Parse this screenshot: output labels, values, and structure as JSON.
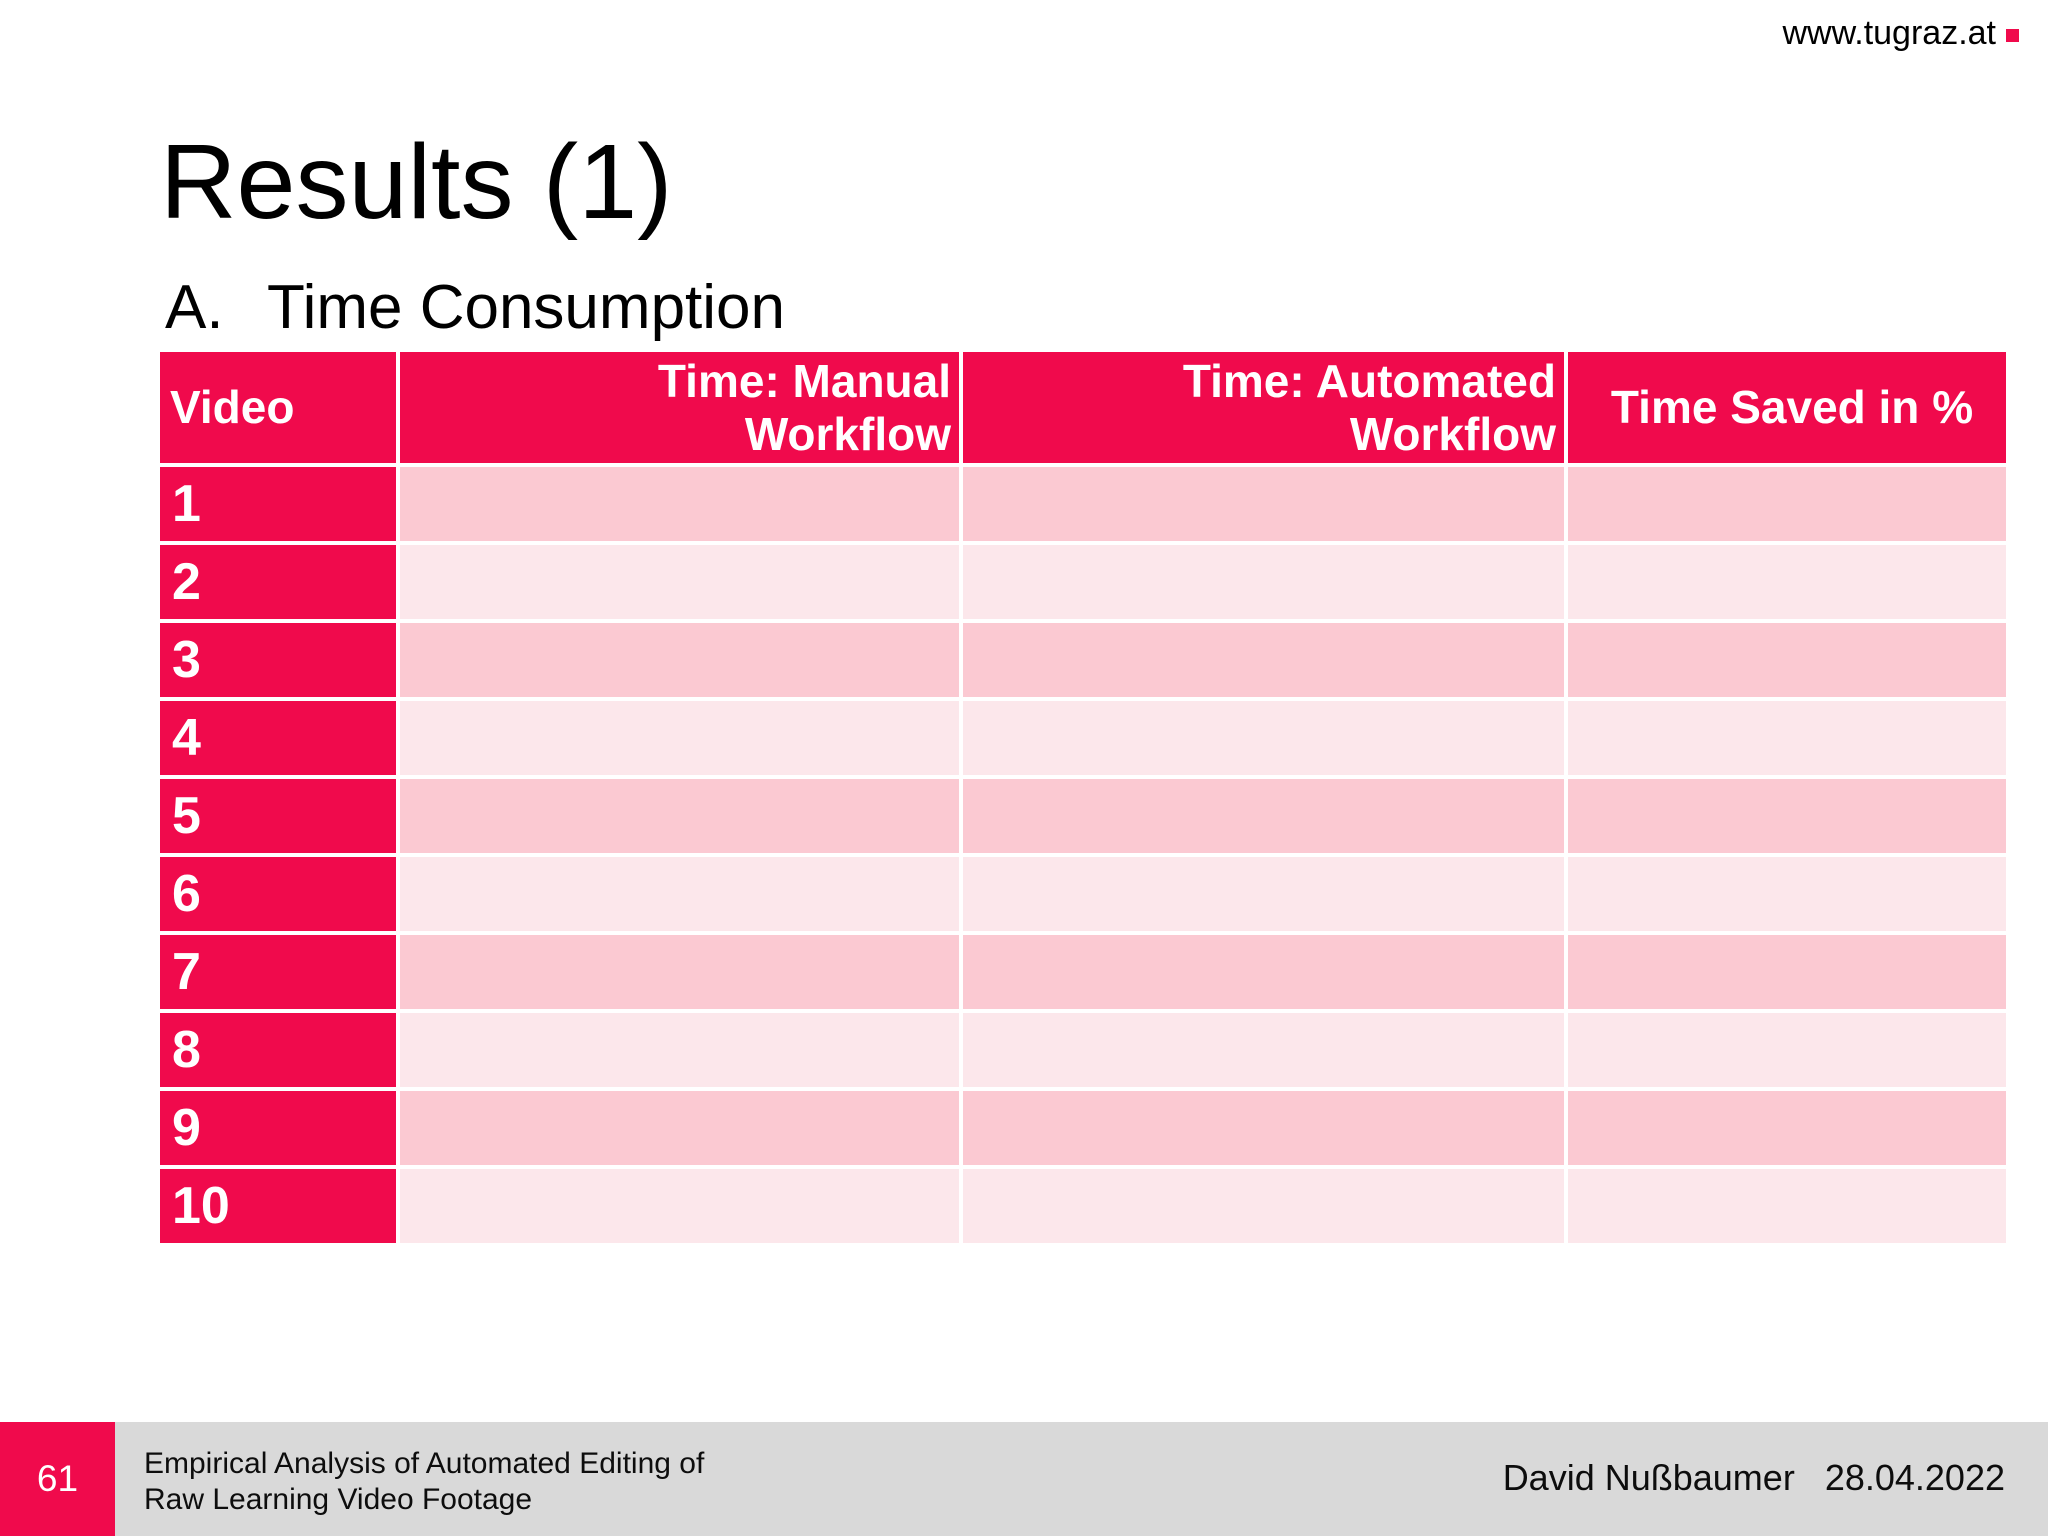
{
  "colors": {
    "brand_red": "#F00A4C",
    "row_odd": "#FBC9D2",
    "row_even": "#FCE7EB",
    "footer_gray": "#D9D9D9"
  },
  "logo": {
    "url_text": "www.tugraz.at"
  },
  "title": "Results (1)",
  "subtitle": {
    "index": "A.",
    "text": "Time Consumption"
  },
  "table": {
    "headers": [
      "Video",
      "Time: Manual\nWorkflow",
      "Time: Automated\nWorkflow",
      "Time Saved in %"
    ],
    "rows": [
      {
        "video": "1",
        "manual": "",
        "automated": "",
        "saved": ""
      },
      {
        "video": "2",
        "manual": "",
        "automated": "",
        "saved": ""
      },
      {
        "video": "3",
        "manual": "",
        "automated": "",
        "saved": ""
      },
      {
        "video": "4",
        "manual": "",
        "automated": "",
        "saved": ""
      },
      {
        "video": "5",
        "manual": "",
        "automated": "",
        "saved": ""
      },
      {
        "video": "6",
        "manual": "",
        "automated": "",
        "saved": ""
      },
      {
        "video": "7",
        "manual": "",
        "automated": "",
        "saved": ""
      },
      {
        "video": "8",
        "manual": "",
        "automated": "",
        "saved": ""
      },
      {
        "video": "9",
        "manual": "",
        "automated": "",
        "saved": ""
      },
      {
        "video": "10",
        "manual": "",
        "automated": "",
        "saved": ""
      }
    ]
  },
  "footer": {
    "page_number": "61",
    "presentation_title": "Empirical Analysis of Automated Editing of\nRaw Learning Video Footage",
    "author": "David Nußbaumer",
    "date": "28.04.2022"
  }
}
